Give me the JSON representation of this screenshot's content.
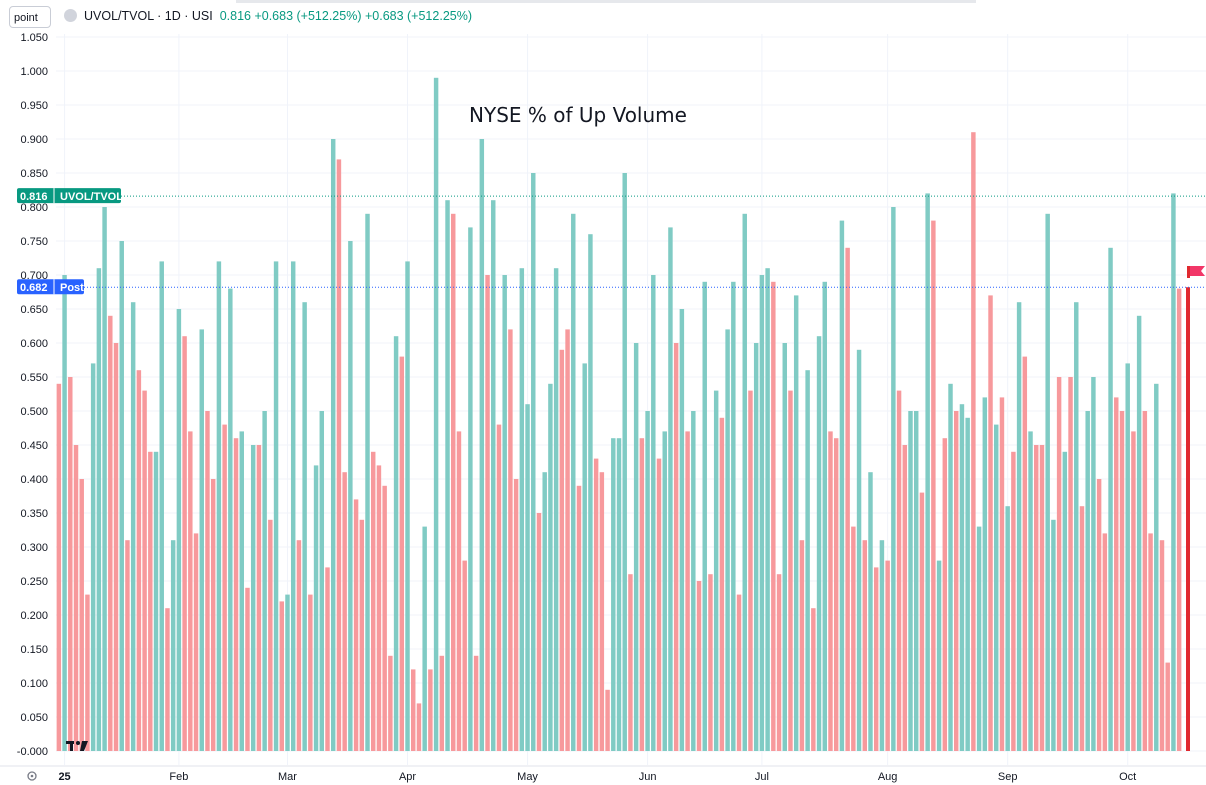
{
  "header": {
    "scale_mode": "point",
    "symbol": "UVOL/TVOL · 1D · USI",
    "price": "0.816",
    "change": "+0.683 (+512.25%)",
    "change2": "+0.683 (+512.25%)"
  },
  "tags": {
    "last_value": "0.816",
    "last_label": "UVOL/TVOL",
    "post_value": "0.682",
    "post_label": "Post"
  },
  "colors": {
    "up": "#80cbc4",
    "down": "#f7999c",
    "last_tag": "#089981",
    "post_tag": "#2962ff",
    "current": "#e0292f"
  },
  "chart_data": {
    "type": "bar",
    "title": "NYSE % of Up Volume",
    "xlabel": "",
    "ylabel": "",
    "ylim": [
      -0.02,
      1.06
    ],
    "yticks": [
      "1.050",
      "1.000",
      "0.950",
      "0.900",
      "0.850",
      "0.800",
      "0.750",
      "0.700",
      "0.650",
      "0.600",
      "0.550",
      "0.500",
      "0.450",
      "0.400",
      "0.350",
      "0.300",
      "0.250",
      "0.200",
      "0.150",
      "0.100",
      "0.050",
      "-0.000"
    ],
    "ytick_values": [
      1.05,
      1.0,
      0.95,
      0.9,
      0.85,
      0.8,
      0.75,
      0.7,
      0.65,
      0.6,
      0.55,
      0.5,
      0.45,
      0.4,
      0.35,
      0.3,
      0.25,
      0.2,
      0.15,
      0.1,
      0.05,
      0.0
    ],
    "xticks": [
      {
        "label": "25",
        "index": 1
      },
      {
        "label": "Feb",
        "index": 21
      },
      {
        "label": "Mar",
        "index": 40
      },
      {
        "label": "Apr",
        "index": 61
      },
      {
        "label": "May",
        "index": 82
      },
      {
        "label": "Jun",
        "index": 103
      },
      {
        "label": "Jul",
        "index": 123
      },
      {
        "label": "Aug",
        "index": 145
      },
      {
        "label": "Sep",
        "index": 166
      },
      {
        "label": "Oct",
        "index": 187
      }
    ],
    "reference_lines": [
      0.816,
      0.682
    ],
    "values": [
      0.54,
      0.7,
      0.55,
      0.45,
      0.4,
      0.23,
      0.57,
      0.71,
      0.8,
      0.64,
      0.6,
      0.75,
      0.31,
      0.66,
      0.56,
      0.53,
      0.44,
      0.44,
      0.72,
      0.21,
      0.31,
      0.65,
      0.61,
      0.47,
      0.32,
      0.62,
      0.5,
      0.4,
      0.72,
      0.48,
      0.68,
      0.46,
      0.47,
      0.24,
      0.45,
      0.45,
      0.5,
      0.34,
      0.72,
      0.22,
      0.23,
      0.72,
      0.31,
      0.66,
      0.23,
      0.42,
      0.5,
      0.27,
      0.9,
      0.87,
      0.41,
      0.75,
      0.37,
      0.34,
      0.79,
      0.44,
      0.42,
      0.39,
      0.14,
      0.61,
      0.58,
      0.72,
      0.12,
      0.07,
      0.33,
      0.12,
      0.99,
      0.14,
      0.81,
      0.79,
      0.47,
      0.28,
      0.77,
      0.14,
      0.9,
      0.7,
      0.81,
      0.48,
      0.7,
      0.62,
      0.4,
      0.71,
      0.51,
      0.85,
      0.35,
      0.41,
      0.54,
      0.71,
      0.59,
      0.62,
      0.79,
      0.39,
      0.57,
      0.76,
      0.43,
      0.41,
      0.09,
      0.46,
      0.46,
      0.85,
      0.26,
      0.6,
      0.46,
      0.5,
      0.7,
      0.43,
      0.47,
      0.77,
      0.6,
      0.65,
      0.47,
      0.5,
      0.25,
      0.69,
      0.26,
      0.53,
      0.49,
      0.62,
      0.69,
      0.23,
      0.79,
      0.53,
      0.6,
      0.7,
      0.71,
      0.69,
      0.26,
      0.6,
      0.53,
      0.67,
      0.31,
      0.56,
      0.21,
      0.61,
      0.69,
      0.47,
      0.46,
      0.78,
      0.74,
      0.33,
      0.59,
      0.31,
      0.41,
      0.27,
      0.31,
      0.28,
      0.8,
      0.53,
      0.45,
      0.5,
      0.5,
      0.38,
      0.82,
      0.78,
      0.28,
      0.46,
      0.54,
      0.5,
      0.51,
      0.49,
      0.91,
      0.33,
      0.52,
      0.67,
      0.48,
      0.52,
      0.36,
      0.44,
      0.66,
      0.58,
      0.47,
      0.45,
      0.45,
      0.79,
      0.34,
      0.55,
      0.44,
      0.55,
      0.66,
      0.36,
      0.5,
      0.55,
      0.4,
      0.32,
      0.74,
      0.52,
      0.5,
      0.57,
      0.47,
      0.64,
      0.5,
      0.32,
      0.54,
      0.31,
      0.13,
      0.82,
      0.68
    ],
    "up": [
      false,
      true,
      false,
      false,
      false,
      false,
      true,
      true,
      true,
      false,
      false,
      true,
      false,
      true,
      false,
      false,
      false,
      true,
      true,
      false,
      true,
      true,
      false,
      false,
      false,
      true,
      false,
      false,
      true,
      false,
      true,
      false,
      true,
      false,
      true,
      false,
      true,
      false,
      true,
      false,
      true,
      true,
      false,
      true,
      false,
      true,
      true,
      false,
      true,
      false,
      false,
      true,
      false,
      false,
      true,
      false,
      false,
      false,
      false,
      true,
      false,
      true,
      false,
      false,
      true,
      false,
      true,
      false,
      true,
      false,
      false,
      false,
      true,
      false,
      true,
      false,
      true,
      false,
      true,
      false,
      false,
      true,
      true,
      true,
      false,
      true,
      true,
      true,
      false,
      false,
      true,
      false,
      true,
      true,
      false,
      false,
      false,
      true,
      true,
      true,
      false,
      true,
      false,
      true,
      true,
      false,
      true,
      true,
      false,
      true,
      false,
      true,
      false,
      true,
      false,
      true,
      false,
      true,
      true,
      false,
      true,
      false,
      true,
      true,
      true,
      false,
      false,
      true,
      false,
      true,
      false,
      true,
      false,
      true,
      true,
      false,
      false,
      true,
      false,
      false,
      true,
      false,
      true,
      false,
      true,
      false,
      true,
      false,
      false,
      true,
      true,
      false,
      true,
      false,
      true,
      false,
      true,
      false,
      true,
      true,
      false,
      true,
      true,
      false,
      true,
      false,
      true,
      false,
      true,
      false,
      true,
      false,
      false,
      true,
      true,
      false,
      true,
      false,
      true,
      false,
      true,
      true,
      false,
      false,
      true,
      false,
      false,
      true,
      false,
      true,
      false,
      false,
      true,
      false,
      false,
      true,
      false
    ]
  }
}
